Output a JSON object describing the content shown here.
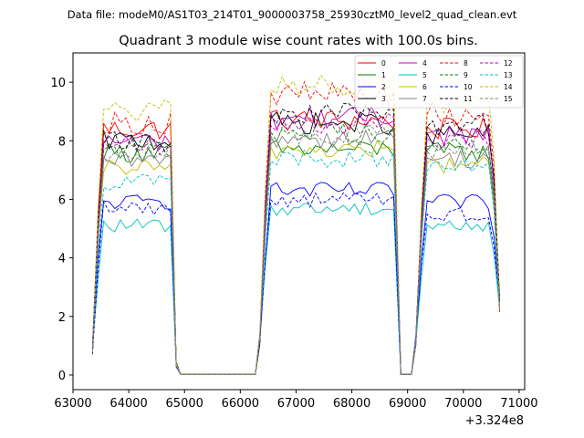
{
  "chart_data": {
    "type": "line",
    "suptitle": "Data file: modeM0/AS1T03_214T01_9000003758_25930cztM0_level2_quad_clean.evt",
    "title": "Quadrant 3 module wise count rates with 100.0s bins.",
    "xlabel": "",
    "ylabel": "",
    "x_offset_label": "+3.324e8",
    "xlim": [
      63000,
      71100
    ],
    "ylim": [
      -0.5,
      11
    ],
    "xticks": [
      63000,
      64000,
      65000,
      66000,
      67000,
      68000,
      69000,
      70000,
      71000
    ],
    "xtick_labels": [
      "63000",
      "64000",
      "65000",
      "66000",
      "67000",
      "68000",
      "69000",
      "70000",
      "71000"
    ],
    "yticks": [
      0,
      2,
      4,
      6,
      8,
      10
    ],
    "ytick_labels": [
      "0",
      "2",
      "4",
      "6",
      "8",
      "10"
    ],
    "grid": false,
    "legend_position": "top-right",
    "segments": [
      {
        "start": 63350,
        "end": 64850,
        "gap_end": 66350
      },
      {
        "start": 66350,
        "end": 68800,
        "gap_end": 69150
      },
      {
        "start": 69150,
        "end": 70650,
        "gap_end": null
      }
    ],
    "series": [
      {
        "name": "0",
        "color": "#ff0000",
        "dash": "solid",
        "levels": [
          8.4,
          8.7,
          8.4
        ]
      },
      {
        "name": "1",
        "color": "#008000",
        "dash": "solid",
        "levels": [
          7.6,
          7.7,
          7.6
        ]
      },
      {
        "name": "2",
        "color": "#0000ff",
        "dash": "solid",
        "levels": [
          5.9,
          6.3,
          5.9
        ]
      },
      {
        "name": "3",
        "color": "#000000",
        "dash": "solid",
        "levels": [
          8.0,
          8.6,
          8.2
        ]
      },
      {
        "name": "4",
        "color": "#bf00bf",
        "dash": "solid",
        "levels": [
          8.0,
          8.8,
          8.2
        ]
      },
      {
        "name": "5",
        "color": "#00bfbf",
        "dash": "solid",
        "levels": [
          5.1,
          5.7,
          5.1
        ]
      },
      {
        "name": "6",
        "color": "#bfbf00",
        "dash": "solid",
        "levels": [
          7.1,
          7.7,
          7.2
        ]
      },
      {
        "name": "7",
        "color": "#808080",
        "dash": "solid",
        "levels": [
          7.3,
          8.1,
          7.4
        ]
      },
      {
        "name": "8",
        "color": "#ff0000",
        "dash": "dashed",
        "levels": [
          8.6,
          9.6,
          8.9
        ]
      },
      {
        "name": "9",
        "color": "#008000",
        "dash": "dashed",
        "levels": [
          7.7,
          8.3,
          7.8
        ]
      },
      {
        "name": "10",
        "color": "#0000ff",
        "dash": "dashed",
        "levels": [
          5.7,
          6.0,
          5.5
        ]
      },
      {
        "name": "11",
        "color": "#000000",
        "dash": "dashed",
        "levels": [
          8.0,
          8.9,
          8.5
        ]
      },
      {
        "name": "12",
        "color": "#bf00bf",
        "dash": "dashed",
        "levels": [
          7.8,
          8.6,
          8.1
        ]
      },
      {
        "name": "13",
        "color": "#00bfbf",
        "dash": "dashed",
        "levels": [
          6.6,
          7.4,
          7.0
        ]
      },
      {
        "name": "14",
        "color": "#bfbf00",
        "dash": "dashed",
        "levels": [
          9.0,
          9.9,
          9.3
        ]
      },
      {
        "name": "15",
        "color": "#808080",
        "dash": "dashed",
        "levels": [
          7.6,
          8.2,
          7.7
        ]
      }
    ]
  }
}
